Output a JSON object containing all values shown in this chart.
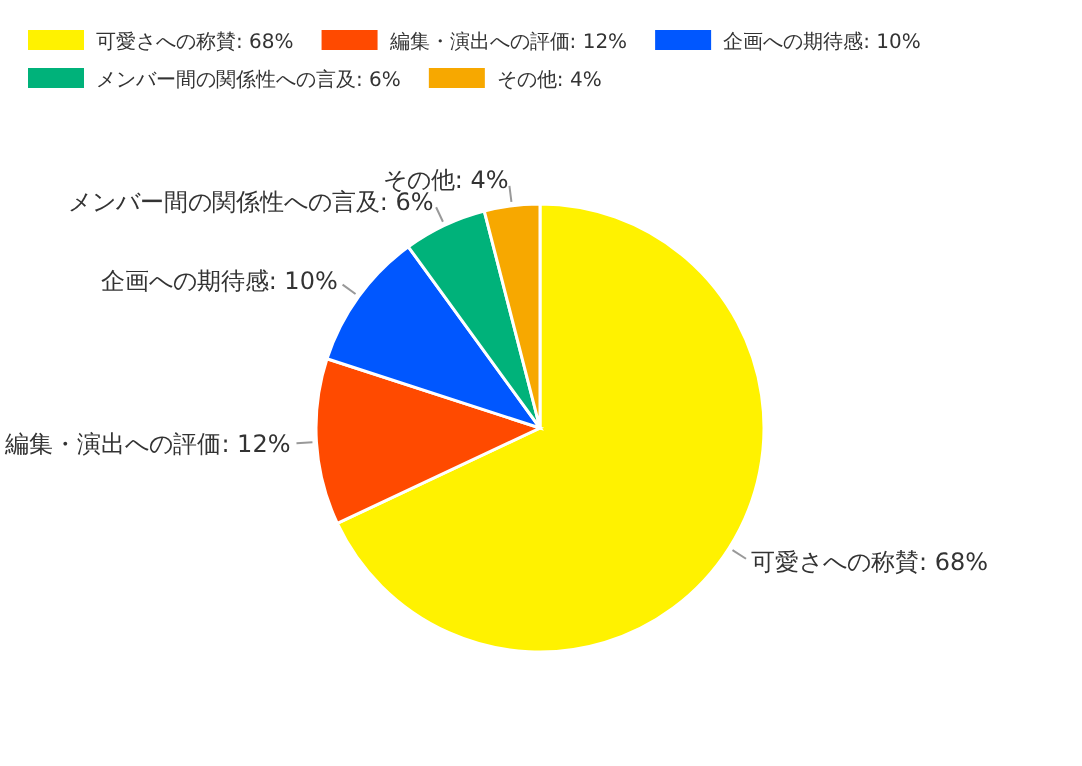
{
  "chart_data": {
    "type": "pie",
    "categories": [
      "可愛さへの称賛",
      "編集・演出への評価",
      "企画への期待感",
      "メンバー間の関係性への言及",
      "その他"
    ],
    "values": [
      68,
      12,
      10,
      6,
      4
    ],
    "colors": [
      "#fff200",
      "#ff4a00",
      "#0057ff",
      "#00b27a",
      "#f7a800"
    ],
    "value_labels": [
      ": 68%",
      ": 12%",
      ": 10%",
      ": 6%",
      ": 4%"
    ],
    "legend": "top"
  }
}
